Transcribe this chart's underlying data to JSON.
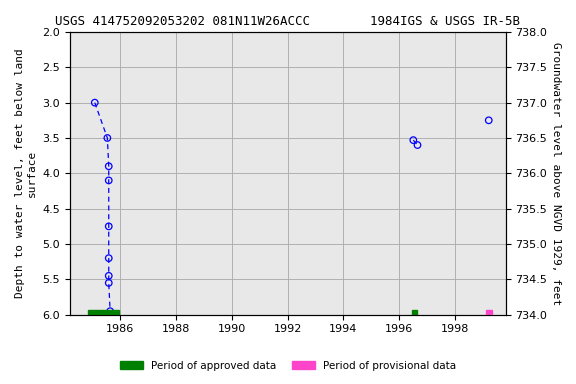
{
  "title": "USGS 414752092053202 081N11W26ACCC        1984IGS & USGS IR-5B",
  "ylabel_left": "Depth to water level, feet below land\nsurface",
  "ylabel_right": "Groundwater level above NGVD 1929, feet",
  "ylim_left": [
    2.0,
    6.0
  ],
  "ylim_right": [
    734.0,
    738.0
  ],
  "xlim": [
    1984.2,
    1999.8
  ],
  "xticks": [
    1986,
    1988,
    1990,
    1992,
    1994,
    1996,
    1998
  ],
  "yticks_left": [
    2.0,
    2.5,
    3.0,
    3.5,
    4.0,
    4.5,
    5.0,
    5.5,
    6.0
  ],
  "yticks_right": [
    734.0,
    734.5,
    735.0,
    735.5,
    736.0,
    736.5,
    737.0,
    737.5,
    738.0
  ],
  "line_segments": [
    {
      "x": [
        1985.1,
        1985.55,
        1985.6,
        1985.6,
        1985.6,
        1985.6,
        1985.6,
        1985.6,
        1985.65,
        1985.65
      ],
      "y": [
        3.0,
        3.5,
        3.9,
        4.1,
        4.75,
        5.2,
        5.45,
        5.55,
        5.95,
        6.08
      ]
    },
    {
      "x": [
        1996.5,
        1996.65
      ],
      "y": [
        3.53,
        3.6
      ]
    }
  ],
  "scatter_groups": [
    {
      "x": [
        1985.1,
        1985.55,
        1985.6,
        1985.6,
        1985.6,
        1985.6,
        1985.6,
        1985.6,
        1985.65,
        1985.65
      ],
      "y": [
        3.0,
        3.5,
        3.9,
        4.1,
        4.75,
        5.2,
        5.45,
        5.55,
        5.95,
        6.08
      ]
    },
    {
      "x": [
        1996.5,
        1996.65
      ],
      "y": [
        3.53,
        3.6
      ]
    },
    {
      "x": [
        1999.2
      ],
      "y": [
        3.25
      ]
    }
  ],
  "approved_bars": [
    {
      "x_start": 1984.85,
      "x_end": 1985.95
    },
    {
      "x_start": 1996.45,
      "x_end": 1996.65
    }
  ],
  "provisional_bars": [
    {
      "x_start": 1999.1,
      "x_end": 1999.3
    }
  ],
  "scatter_color": "blue",
  "approved_color": "#008000",
  "provisional_color": "#ff44cc",
  "background_color": "#e8e8e8",
  "grid_color": "#b0b0b0",
  "title_fontsize": 9,
  "axis_label_fontsize": 8,
  "tick_fontsize": 8
}
